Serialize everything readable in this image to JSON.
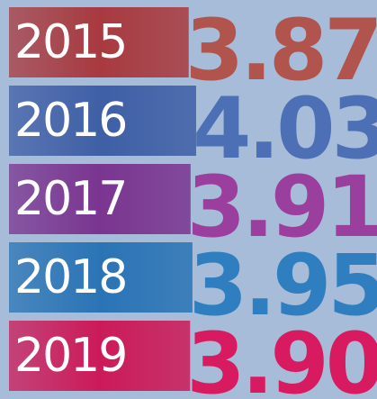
{
  "chart_data": {
    "type": "bar",
    "orientation": "horizontal",
    "categories": [
      "2015",
      "2016",
      "2017",
      "2018",
      "2019"
    ],
    "values": [
      3.87,
      4.03,
      3.91,
      3.95,
      3.9
    ],
    "value_labels": [
      "3.87",
      "4.03",
      "3.91",
      "3.95",
      "3.90"
    ],
    "colors": [
      "#a83a3f",
      "#3f5fa6",
      "#7a3590",
      "#2a74b5",
      "#cc1a58"
    ],
    "label_colors": [
      "#b0544d",
      "#4d6fb5",
      "#9a3f9e",
      "#2f7fc0",
      "#d81b60"
    ]
  }
}
